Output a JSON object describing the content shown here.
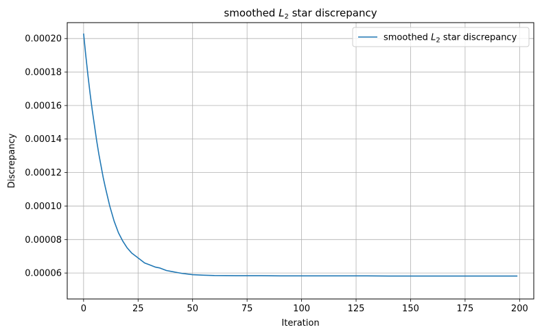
{
  "chart_data": {
    "type": "line",
    "title": {
      "pre": "smoothed ",
      "sym": "L",
      "sub": "2",
      "post": " star discrepancy"
    },
    "xlabel": "Iteration",
    "ylabel": "Discrepancy",
    "xlim": [
      -7.5,
      206.5
    ],
    "ylim": [
      4.45e-05,
      0.0002095
    ],
    "xticks": [
      0,
      25,
      50,
      75,
      100,
      125,
      150,
      175,
      200
    ],
    "yticks": [
      6e-05,
      8e-05,
      0.0001,
      0.00012,
      0.00014,
      0.00016,
      0.00018,
      0.0002
    ],
    "ytick_labels": [
      "0.00006",
      "0.00008",
      "0.00010",
      "0.00012",
      "0.00014",
      "0.00016",
      "0.00018",
      "0.00020"
    ],
    "grid": true,
    "legend_position": "upper right",
    "series": [
      {
        "name": {
          "pre": "smoothed ",
          "sym": "L",
          "sub": "2",
          "post": " star discrepancy"
        },
        "color": "#1f77b4",
        "x": [
          0,
          1,
          2,
          3,
          4,
          5,
          6,
          7,
          8,
          9,
          10,
          12,
          14,
          16,
          18,
          20,
          22,
          25,
          28,
          30,
          33,
          35,
          38,
          40,
          45,
          50,
          55,
          60,
          70,
          80,
          90,
          100,
          110,
          120,
          130,
          140,
          150,
          160,
          170,
          180,
          190,
          199
        ],
        "values": [
          0.000203,
          0.00019,
          0.000178,
          0.000167,
          0.000157,
          0.000148,
          0.000139,
          0.000131,
          0.000124,
          0.000117,
          0.000111,
          0.0001,
          9.1e-05,
          8.4e-05,
          7.9e-05,
          7.5e-05,
          7.2e-05,
          6.9e-05,
          6.6e-05,
          6.5e-05,
          6.35e-05,
          6.3e-05,
          6.15e-05,
          6.1e-05,
          5.98e-05,
          5.9e-05,
          5.87e-05,
          5.85e-05,
          5.84e-05,
          5.84e-05,
          5.83e-05,
          5.83e-05,
          5.83e-05,
          5.83e-05,
          5.83e-05,
          5.82e-05,
          5.82e-05,
          5.82e-05,
          5.82e-05,
          5.82e-05,
          5.82e-05,
          5.82e-05
        ]
      }
    ]
  }
}
